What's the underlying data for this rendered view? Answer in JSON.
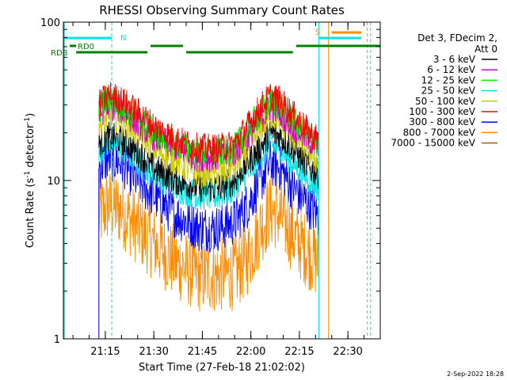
{
  "chart_data": {
    "type": "line",
    "title": "RHESSI Observing Summary Count Rates",
    "xlabel": "Start Time (27-Feb-18 21:02:02)",
    "ylabel_main": "Count Rate (s",
    "ylabel_sup": "-1",
    "ylabel_mid": " detector",
    "ylabel_end": ")",
    "y_scale": "log",
    "ylim": [
      1,
      100
    ],
    "xlim": [
      "21:02:02",
      "22:40:00"
    ],
    "y_ticks": [
      {
        "value": 1,
        "label": "1"
      },
      {
        "value": 10,
        "label": "10"
      },
      {
        "value": 100,
        "label": "100"
      }
    ],
    "x_ticks": [
      {
        "value": "21:15",
        "label": "21:15"
      },
      {
        "value": "21:30",
        "label": "21:30"
      },
      {
        "value": "21:45",
        "label": "21:45"
      },
      {
        "value": "22:00",
        "label": "22:00"
      },
      {
        "value": "22:15",
        "label": "22:15"
      },
      {
        "value": "22:30",
        "label": "22:30"
      }
    ],
    "legend_header": [
      "Det 3, FDecim 2,",
      "Att 0"
    ],
    "legend_position": "right",
    "series": [
      {
        "name": "3 - 6 keV",
        "color": "#000000",
        "values": [
          17,
          19,
          18,
          15,
          12,
          10,
          9,
          9,
          10,
          13,
          16,
          20,
          19,
          16,
          12,
          11
        ]
      },
      {
        "name": "6 - 12 keV",
        "color": "#cc00cc",
        "values": [
          26,
          30,
          28,
          23,
          19,
          16,
          14,
          14,
          15,
          19,
          24,
          29,
          27,
          22,
          18,
          16
        ]
      },
      {
        "name": "12 - 25 keV",
        "color": "#00ee00",
        "values": [
          28,
          33,
          30,
          25,
          20,
          17,
          15,
          15,
          16,
          21,
          27,
          32,
          30,
          24,
          19,
          17
        ]
      },
      {
        "name": "25 - 50 keV",
        "color": "#00e5e5",
        "values": [
          15,
          18,
          16,
          13,
          11,
          9,
          8,
          8,
          9,
          11,
          14,
          17,
          16,
          13,
          10,
          9
        ]
      },
      {
        "name": "50 - 100 keV",
        "color": "#cccc00",
        "values": [
          22,
          26,
          24,
          20,
          16,
          13,
          11,
          11,
          12,
          16,
          21,
          26,
          24,
          19,
          15,
          13
        ]
      },
      {
        "name": "100 - 300 keV",
        "color": "#ff0000",
        "values": [
          30,
          35,
          32,
          27,
          22,
          18,
          16,
          16,
          17,
          22,
          29,
          34,
          32,
          26,
          20,
          18
        ]
      },
      {
        "name": "300 - 800 keV",
        "color": "#0000ff",
        "values": [
          12,
          14,
          13,
          10,
          8,
          6,
          5,
          5,
          5.5,
          7,
          10,
          13,
          12,
          9,
          7,
          6
        ]
      },
      {
        "name": "800 - 7000 keV",
        "color": "#ff8c00",
        "values": [
          6,
          7,
          6.5,
          5,
          4,
          3,
          2.5,
          2.5,
          2.6,
          3.2,
          5,
          6.5,
          6,
          4.5,
          3.5,
          3
        ]
      },
      {
        "name": "7000 - 15000 keV",
        "color": "#a06000",
        "values": []
      }
    ],
    "series_x": [
      "21:13",
      "21:16",
      "21:20",
      "21:25",
      "21:30",
      "21:37",
      "21:44",
      "21:50",
      "21:55",
      "21:59",
      "22:03",
      "22:06",
      "22:09",
      "22:13",
      "22:18",
      "22:21"
    ],
    "flags": [
      {
        "label": "RD0",
        "color": "#008000"
      },
      {
        "label": "RDB",
        "color": "#008000"
      },
      {
        "label": "N",
        "color": "#00e5e5"
      },
      {
        "label": "S",
        "color": "#ff8c00"
      }
    ],
    "footer_date": "2-Sep-2022 18:28",
    "colors": {
      "frame": "#000000",
      "background": "#ffffff",
      "night": "#00e5e5",
      "saa": "#ff8c00"
    }
  }
}
